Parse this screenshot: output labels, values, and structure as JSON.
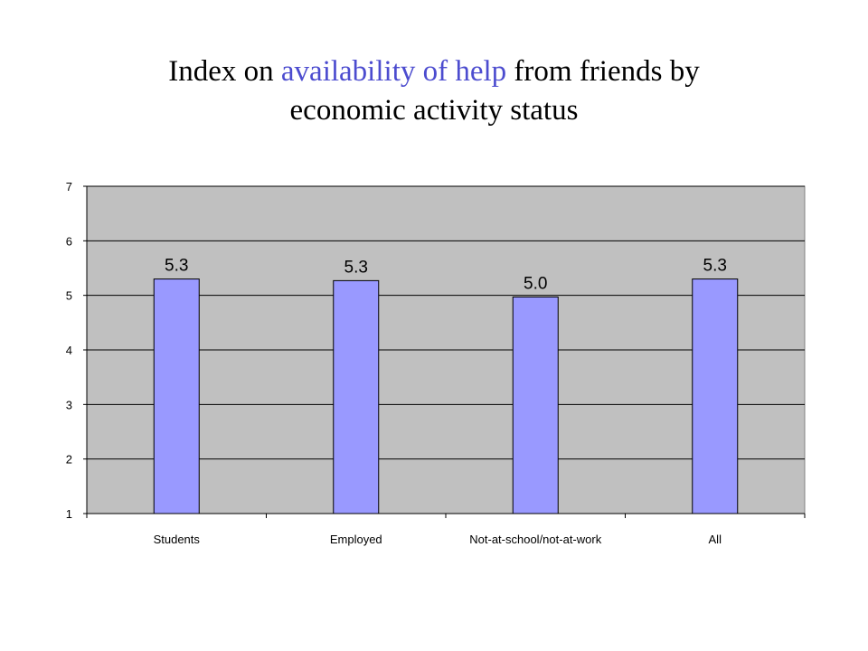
{
  "title": {
    "part1": "Index on ",
    "highlight": "availability of help",
    "part2": " from friends by",
    "line2": "economic activity status",
    "highlight_color": "#4c4ccf"
  },
  "chart_data": {
    "type": "bar",
    "categories": [
      "Students",
      "Employed",
      "Not-at-school/not-at-work",
      "All"
    ],
    "values": [
      5.3,
      5.27,
      4.97,
      5.3
    ],
    "data_labels": [
      "5.3",
      "5.3",
      "5.0",
      "5.3"
    ],
    "ylim": [
      1,
      7
    ],
    "yticks": [
      "1",
      "2",
      "3",
      "4",
      "5",
      "6",
      "7"
    ],
    "grid": true,
    "legend": "none",
    "colors": {
      "bar": "#9999ff",
      "plot_background": "#c0c0c0"
    }
  }
}
